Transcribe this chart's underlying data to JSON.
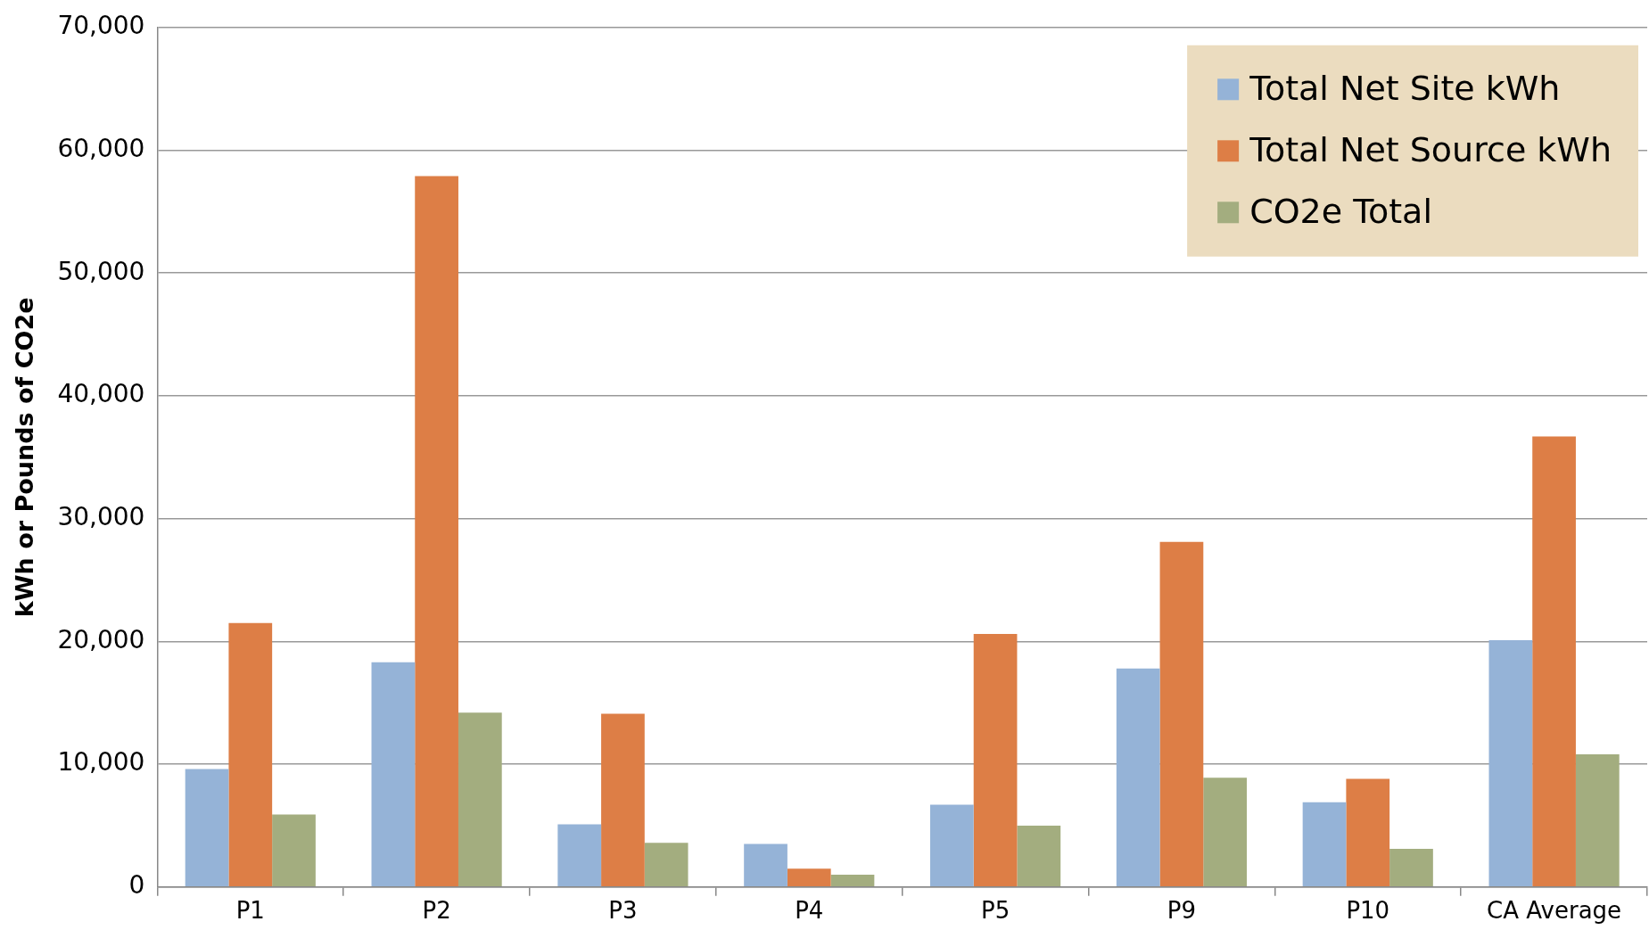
{
  "chart_data": {
    "type": "bar",
    "ylabel": "kWh or Pounds of CO2e",
    "categories": [
      "P1",
      "P2",
      "P3",
      "P4",
      "P5",
      "P9",
      "P10",
      "CA Average"
    ],
    "series": [
      {
        "name": "Total Net Site kWh",
        "color": "#95b3d7",
        "values": [
          9600,
          18300,
          5100,
          3500,
          6700,
          17800,
          6900,
          20100
        ]
      },
      {
        "name": "Total Net Source kWh",
        "color": "#dd7e46",
        "values": [
          21500,
          57900,
          14100,
          1500,
          20600,
          28100,
          8800,
          36700
        ]
      },
      {
        "name": "CO2e Total",
        "color": "#a3ad7f",
        "values": [
          5900,
          14200,
          3600,
          1000,
          5000,
          8900,
          3100,
          10800
        ]
      }
    ],
    "ylim": [
      0,
      70000
    ],
    "yticks": [
      {
        "value": 0,
        "label": "0"
      },
      {
        "value": 10000,
        "label": "10,000"
      },
      {
        "value": 20000,
        "label": "20,000"
      },
      {
        "value": 30000,
        "label": "30,000"
      },
      {
        "value": 40000,
        "label": "40,000"
      },
      {
        "value": 50000,
        "label": "50,000"
      },
      {
        "value": 60000,
        "label": "60,000"
      },
      {
        "value": 70000,
        "label": "70,000"
      }
    ],
    "grid": "y",
    "legend": "top right"
  }
}
